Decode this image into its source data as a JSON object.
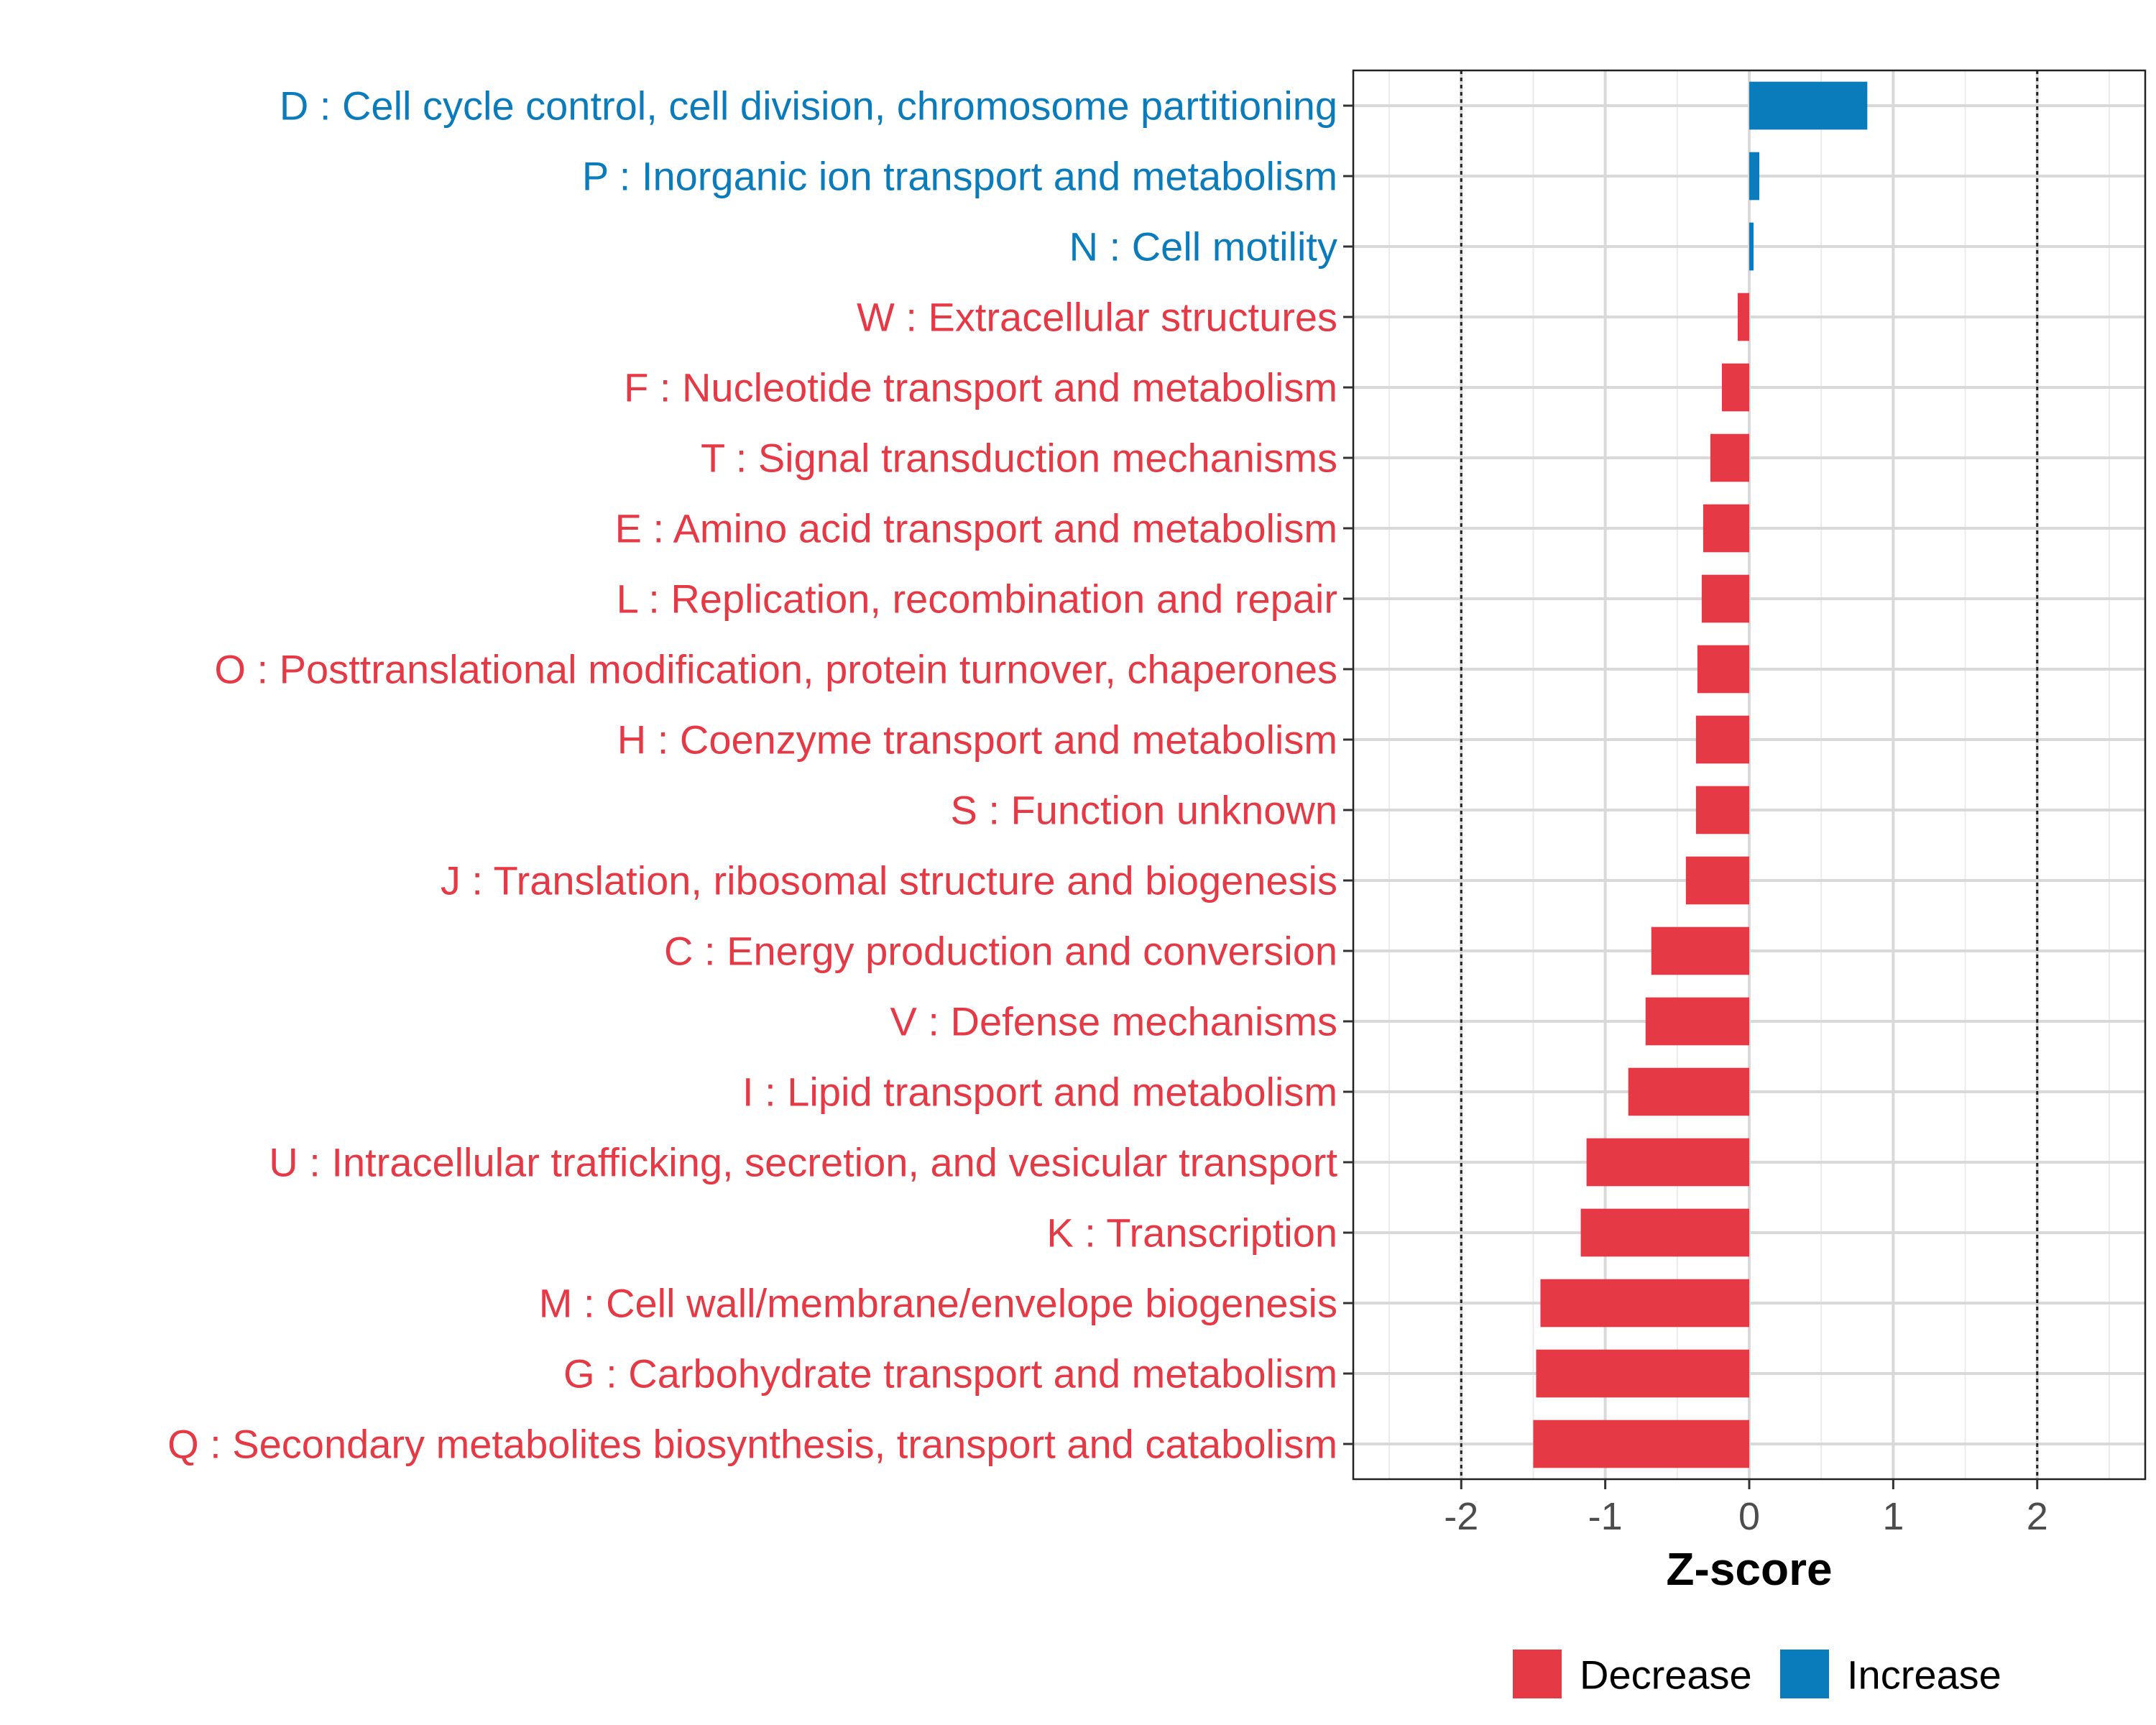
{
  "chart_data": {
    "type": "bar",
    "orientation": "horizontal",
    "title": "",
    "xlabel": "Z-score",
    "ylabel": "",
    "xlim": [
      -2.75,
      2.75
    ],
    "xticks": [
      -2,
      -1,
      0,
      1,
      2
    ],
    "xtick_labels": [
      "-2",
      "-1",
      "0",
      "1",
      "2"
    ],
    "reference_lines": [
      -2,
      2
    ],
    "grid": true,
    "colors": {
      "Decrease": "#E63946",
      "Increase": "#0A7BBB"
    },
    "categories": [
      "D : Cell cycle control, cell division, chromosome partitioning",
      "P : Inorganic ion transport and metabolism",
      "N : Cell motility",
      "W : Extracellular structures",
      "F : Nucleotide transport and metabolism",
      "T : Signal transduction mechanisms",
      "E : Amino acid transport and metabolism",
      "L : Replication, recombination and repair",
      "O : Posttranslational modification, protein turnover, chaperones",
      "H : Coenzyme transport and metabolism",
      "S : Function unknown",
      "J : Translation, ribosomal structure and biogenesis",
      "C : Energy production and conversion",
      "V : Defense mechanisms",
      "I : Lipid transport and metabolism",
      "U : Intracellular trafficking, secretion, and vesicular transport",
      "K : Transcription",
      "M : Cell wall/membrane/envelope biogenesis",
      "G : Carbohydrate transport and metabolism",
      "Q : Secondary metabolites biosynthesis, transport and catabolism"
    ],
    "values": [
      0.82,
      0.07,
      0.03,
      -0.08,
      -0.19,
      -0.27,
      -0.32,
      -0.33,
      -0.36,
      -0.37,
      -0.37,
      -0.44,
      -0.68,
      -0.72,
      -0.84,
      -1.13,
      -1.17,
      -1.45,
      -1.48,
      -1.5
    ],
    "groups": [
      "Increase",
      "Increase",
      "Increase",
      "Decrease",
      "Decrease",
      "Decrease",
      "Decrease",
      "Decrease",
      "Decrease",
      "Decrease",
      "Decrease",
      "Decrease",
      "Decrease",
      "Decrease",
      "Decrease",
      "Decrease",
      "Decrease",
      "Decrease",
      "Decrease",
      "Decrease"
    ],
    "legend": {
      "position": "bottom",
      "entries": [
        {
          "label": "Decrease",
          "color": "#E63946"
        },
        {
          "label": "Increase",
          "color": "#0A7BBB"
        }
      ]
    }
  }
}
